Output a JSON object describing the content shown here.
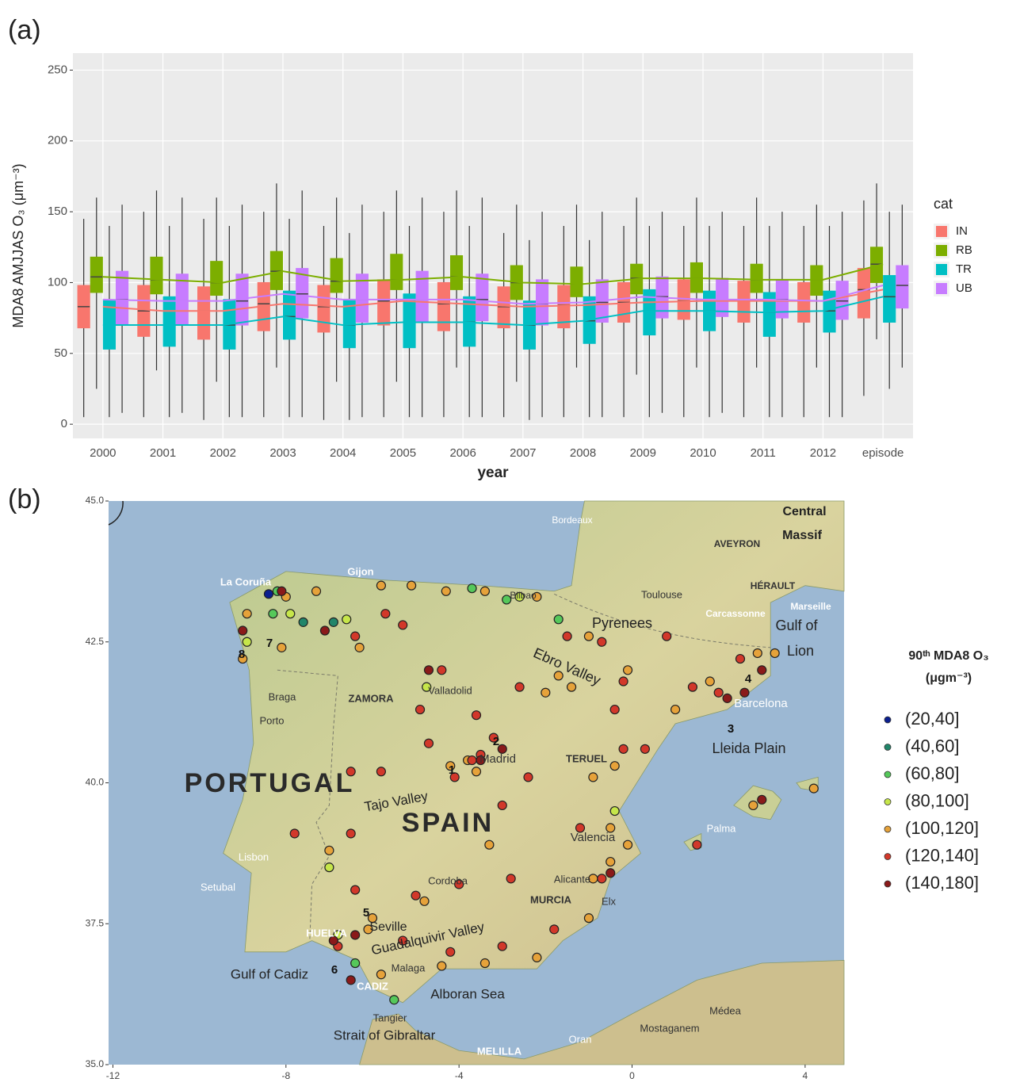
{
  "chart_data": [
    {
      "type": "box",
      "panel_label": "(a)",
      "y_label": "MDA8 AMJJAS O₃ (μm⁻³)",
      "x_label": "year",
      "legend_title": "cat",
      "legend_position": "right",
      "grid": true,
      "categories": [
        "2000",
        "2001",
        "2002",
        "2003",
        "2004",
        "2005",
        "2006",
        "2007",
        "2008",
        "2009",
        "2010",
        "2011",
        "2012",
        "episode"
      ],
      "ylim": [
        -10,
        262
      ],
      "yticks": [
        0,
        50,
        100,
        150,
        200,
        250
      ],
      "series": [
        {
          "name": "IN",
          "color": "#f8766d",
          "low": [
            5,
            5,
            3,
            5,
            3,
            5,
            5,
            5,
            5,
            5,
            5,
            5,
            5,
            20
          ],
          "q1": [
            68,
            62,
            60,
            66,
            65,
            70,
            66,
            68,
            68,
            72,
            74,
            72,
            72,
            75
          ],
          "median": [
            83,
            80,
            80,
            85,
            83,
            87,
            85,
            83,
            84,
            86,
            87,
            87,
            87,
            95
          ],
          "q3": [
            98,
            98,
            97,
            100,
            98,
            102,
            100,
            97,
            98,
            100,
            102,
            101,
            100,
            110
          ],
          "high": [
            145,
            150,
            145,
            150,
            140,
            150,
            150,
            135,
            140,
            140,
            140,
            140,
            140,
            158
          ]
        },
        {
          "name": "RB",
          "color": "#7cae00",
          "low": [
            25,
            38,
            30,
            40,
            30,
            30,
            40,
            30,
            40,
            35,
            40,
            40,
            40,
            60
          ],
          "q1": [
            93,
            92,
            91,
            95,
            93,
            95,
            95,
            88,
            90,
            92,
            93,
            93,
            91,
            100
          ],
          "median": [
            104,
            102,
            100,
            108,
            101,
            102,
            104,
            100,
            99,
            103,
            103,
            102,
            102,
            113
          ],
          "q3": [
            118,
            118,
            115,
            122,
            117,
            120,
            119,
            112,
            111,
            113,
            114,
            113,
            112,
            125
          ],
          "high": [
            160,
            165,
            160,
            170,
            160,
            165,
            165,
            155,
            155,
            160,
            160,
            160,
            155,
            170
          ]
        },
        {
          "name": "TR",
          "color": "#00bfc4",
          "low": [
            5,
            5,
            5,
            5,
            3,
            5,
            5,
            3,
            5,
            5,
            5,
            5,
            5,
            25
          ],
          "q1": [
            53,
            55,
            53,
            60,
            54,
            54,
            55,
            53,
            57,
            63,
            66,
            62,
            65,
            72
          ],
          "median": [
            70,
            70,
            70,
            76,
            70,
            72,
            72,
            70,
            73,
            80,
            80,
            79,
            80,
            90
          ],
          "q3": [
            88,
            90,
            88,
            94,
            88,
            92,
            90,
            87,
            90,
            95,
            94,
            93,
            94,
            105
          ],
          "high": [
            140,
            140,
            140,
            145,
            135,
            140,
            140,
            130,
            130,
            140,
            140,
            140,
            140,
            150
          ]
        },
        {
          "name": "UB",
          "color": "#c77cff",
          "low": [
            8,
            8,
            5,
            5,
            5,
            5,
            5,
            5,
            5,
            8,
            8,
            5,
            5,
            40
          ],
          "q1": [
            70,
            70,
            70,
            75,
            72,
            72,
            73,
            70,
            72,
            75,
            76,
            75,
            74,
            82
          ],
          "median": [
            88,
            87,
            87,
            92,
            88,
            88,
            88,
            85,
            86,
            90,
            88,
            88,
            87,
            98
          ],
          "q3": [
            108,
            106,
            106,
            110,
            106,
            108,
            106,
            102,
            102,
            104,
            103,
            102,
            101,
            112
          ],
          "high": [
            155,
            160,
            155,
            165,
            155,
            160,
            160,
            150,
            150,
            150,
            150,
            150,
            150,
            155
          ]
        }
      ]
    },
    {
      "type": "scatter",
      "panel_label": "(b)",
      "legend_title": [
        "90ᵗʰ MDA8 O₃",
        "(μgm⁻³)"
      ],
      "legend_position": "right",
      "xlim": [
        -12.1,
        4.9
      ],
      "ylim": [
        35,
        45
      ],
      "xticks": [
        -12,
        -8,
        -4,
        0,
        4
      ],
      "yticks": [
        {
          "value": 35,
          "label": "35.0"
        },
        {
          "value": 37.5,
          "label": "37.5"
        },
        {
          "value": 40,
          "label": "40.0"
        },
        {
          "value": 42.5,
          "label": "42.5"
        },
        {
          "value": 45,
          "label": "45.0"
        }
      ],
      "annotations": [
        "La Coruña",
        "Gijon",
        "Bilbao",
        "Bordeaux",
        "Toulouse",
        "AVEYRON",
        "HÉRAULT",
        "Central",
        "Massif",
        "Carcassonne",
        "Marseille",
        "Pyrenees",
        "Gulf of",
        "Lion",
        "Ebro Valley",
        "Valladolid",
        "ZAMORA",
        "Braga",
        "Porto",
        "Madrid",
        "TERUEL",
        "Lleida Plain",
        "Barcelona",
        "PORTUGAL",
        "SPAIN",
        "Tajo Valley",
        "Valencia",
        "Palma",
        "Lisbon",
        "Setubal",
        "Alicante",
        "Elx",
        "MURCIA",
        "Cordoba",
        "Seville",
        "HUELVA",
        "Guadalquivir Valley",
        "Gulf of Cadiz",
        "CADIZ",
        "Malaga",
        "Alboran Sea",
        "Tangier",
        "Strait of Gibraltar",
        "MELILLA",
        "Oran",
        "Mostaganem",
        "Médea",
        "1",
        "2",
        "3",
        "4",
        "5",
        "6",
        "7",
        "8"
      ],
      "series": [
        {
          "name": "(20,40]",
          "color": "#0b1f8f",
          "x": [
            -8.4
          ],
          "y": [
            43.35
          ]
        },
        {
          "name": "(40,60]",
          "color": "#21866a",
          "x": [
            -7.6,
            -6.9
          ],
          "y": [
            42.85,
            42.85
          ]
        },
        {
          "name": "(60,80]",
          "color": "#55c85a",
          "x": [
            -8.2,
            -2.9,
            -3.7,
            -6.4,
            -5.5,
            -8.3,
            -1.7
          ],
          "y": [
            43.4,
            43.25,
            43.45,
            36.8,
            36.15,
            43.0,
            42.9
          ]
        },
        {
          "name": "(80,100]",
          "color": "#c6e64a",
          "x": [
            -8.9,
            -7.9,
            -4.75,
            -7.0,
            -0.4,
            -6.8,
            -2.6,
            -6.6
          ],
          "y": [
            42.5,
            43.0,
            41.7,
            38.5,
            39.5,
            37.3,
            43.3,
            42.9
          ]
        },
        {
          "name": "(100,120]",
          "color": "#e6a23a",
          "x": [
            -9.0,
            -8.9,
            -8.0,
            -7.3,
            -6.3,
            -5.8,
            -5.1,
            -4.3,
            -3.4,
            -2.2,
            -1.0,
            -0.1,
            1.0,
            1.8,
            2.9,
            3.3,
            -2.0,
            -1.7,
            -0.4,
            -0.9,
            -0.5,
            -0.1,
            -0.5,
            -0.9,
            -1.0,
            -2.2,
            -3.4,
            -4.4,
            -5.8,
            -6.0,
            -6.1,
            -4.8,
            -3.8,
            -3.6,
            -4.2,
            -7.0,
            -8.1,
            -1.4,
            2.8,
            4.2,
            -3.3
          ],
          "y": [
            42.2,
            43.0,
            43.3,
            43.4,
            42.4,
            43.5,
            43.5,
            43.4,
            43.4,
            43.3,
            42.6,
            42.0,
            41.3,
            41.8,
            42.3,
            42.3,
            41.6,
            41.9,
            40.3,
            40.1,
            39.2,
            38.9,
            38.6,
            38.3,
            37.6,
            36.9,
            36.8,
            36.75,
            36.6,
            37.6,
            37.4,
            37.9,
            40.4,
            40.2,
            40.3,
            38.8,
            42.4,
            41.7,
            39.6,
            39.9,
            38.9
          ]
        },
        {
          "name": "(120,140]",
          "color": "#d2382a",
          "x": [
            -6.4,
            -5.3,
            -5.7,
            -4.4,
            -4.9,
            -4.7,
            -6.5,
            -6.5,
            -5.8,
            -4.1,
            -3.0,
            -2.4,
            -3.6,
            -2.6,
            -1.5,
            -0.7,
            0.8,
            1.4,
            2.0,
            2.5,
            -0.2,
            -0.4,
            -0.2,
            0.3,
            -1.2,
            -0.7,
            -1.8,
            -3.0,
            -4.2,
            -5.3,
            -5.0,
            -4.0,
            -2.8,
            -6.4,
            -7.8,
            -3.7,
            -3.5,
            -3.2,
            1.5,
            -6.8
          ],
          "y": [
            42.6,
            42.8,
            43.0,
            42.0,
            41.3,
            40.7,
            40.2,
            39.1,
            40.2,
            40.1,
            39.6,
            40.1,
            41.2,
            41.7,
            42.6,
            42.5,
            42.6,
            41.7,
            41.6,
            42.2,
            41.8,
            41.3,
            40.6,
            40.6,
            39.2,
            38.3,
            37.4,
            37.1,
            37.0,
            37.2,
            38.0,
            38.2,
            38.3,
            38.1,
            39.1,
            40.4,
            40.5,
            40.8,
            38.9,
            37.1
          ]
        },
        {
          "name": "(140,180]",
          "color": "#8a1a1a",
          "x": [
            -9.0,
            -8.1,
            -7.1,
            -4.7,
            -3.5,
            -3.0,
            2.6,
            2.2,
            3.0,
            -6.5,
            -6.9,
            -6.4,
            -0.5,
            3.0
          ],
          "y": [
            42.7,
            43.4,
            42.7,
            42.0,
            40.4,
            40.6,
            41.6,
            41.5,
            42.0,
            36.5,
            37.2,
            37.3,
            38.4,
            39.7
          ]
        }
      ]
    }
  ]
}
